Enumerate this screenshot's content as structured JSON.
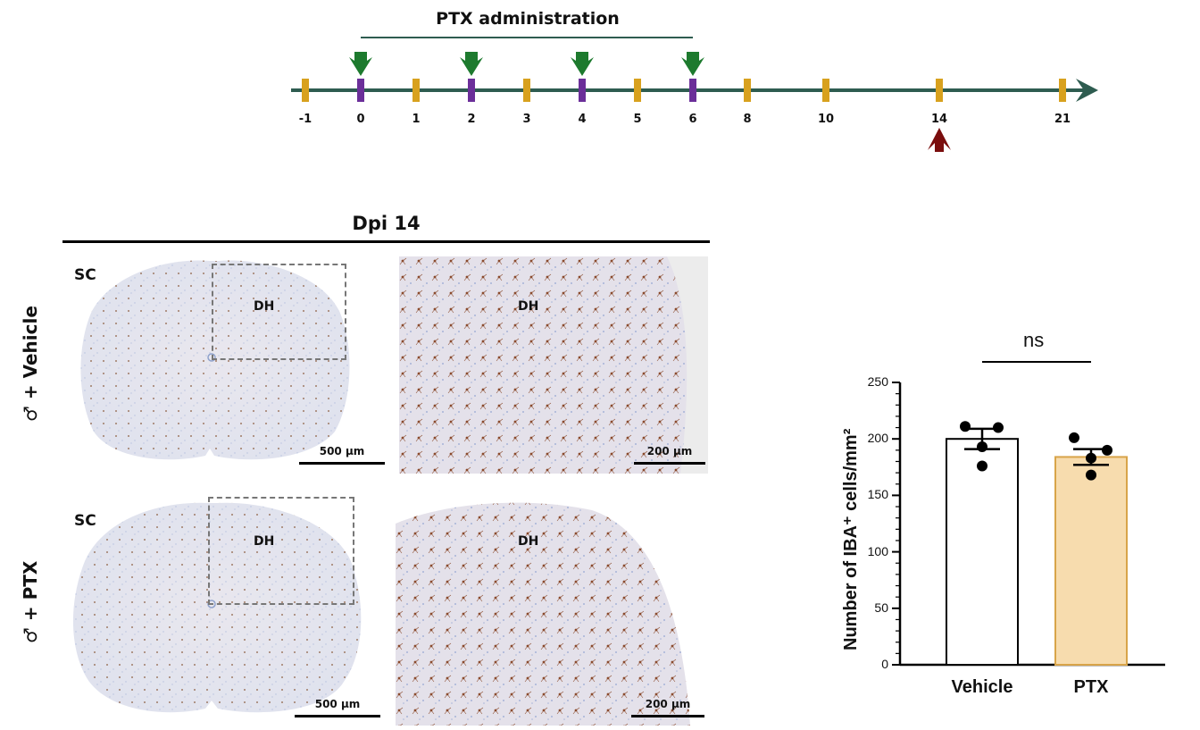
{
  "timeline": {
    "title": "PTX administration",
    "ticks": [
      "-1",
      "0",
      "1",
      "2",
      "3",
      "4",
      "5",
      "6",
      "8",
      "10",
      "14",
      "21"
    ],
    "dosing_days": [
      "0",
      "2",
      "4",
      "6"
    ],
    "sample_day": "14",
    "colors": {
      "axis": "#2e5c50",
      "tick": "#d8a11e",
      "dose_tick": "#6b2f99",
      "dose_arrow": "#1d7a2e",
      "sample_arrow": "#7a0d0d"
    }
  },
  "panels": {
    "title": "Dpi  14",
    "rows": [
      {
        "label": "♂ + Vehicle",
        "region_label": "SC",
        "dh_label": "DH",
        "scale_low": "500 µm",
        "scale_high": "200 µm"
      },
      {
        "label": "♂ + PTX",
        "region_label": "SC",
        "dh_label": "DH",
        "scale_low": "500 µm",
        "scale_high": "200 µm"
      }
    ]
  },
  "chart_data": {
    "type": "bar",
    "categories": [
      "Vehicle",
      "PTX"
    ],
    "values": [
      200,
      184
    ],
    "sem": [
      9,
      7
    ],
    "points": [
      [
        211,
        210,
        193,
        176
      ],
      [
        201,
        190,
        183,
        168
      ]
    ],
    "ylabel": "Number of IBA⁺ cells/mm²",
    "ylim": [
      0,
      250
    ],
    "yticks": [
      "0",
      "50",
      "100",
      "150",
      "200",
      "250"
    ],
    "significance": "ns",
    "bar_colors": [
      "#ffffff",
      "#f7dcae"
    ],
    "bar_edge_colors": [
      "#000000",
      "#d8a449"
    ]
  }
}
